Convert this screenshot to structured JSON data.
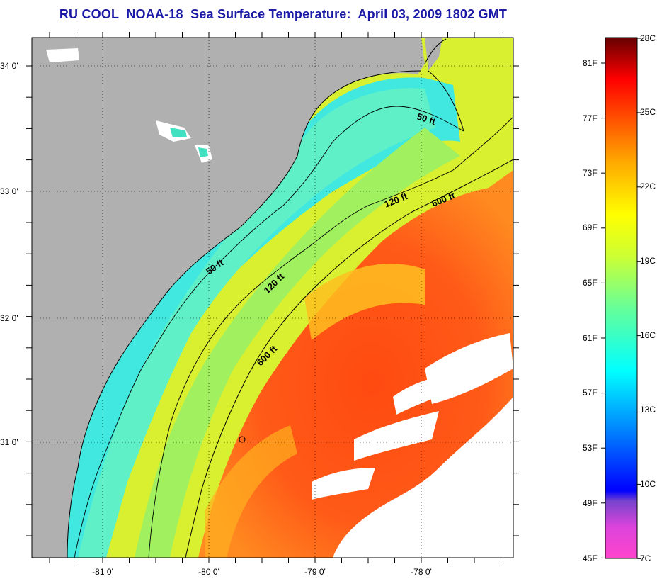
{
  "title": "RU COOL  NOAA-18  Sea Surface Temperature:  April 03, 2009 1802 GMT",
  "map": {
    "lat_labels": [
      "34 0'",
      "33 0'",
      "32 0'",
      "31 0'"
    ],
    "lon_labels": [
      "-81 0'",
      "-80 0'",
      "-79 0'",
      "-78 0'"
    ],
    "contours": [
      "50 ft",
      "120 ft",
      "600 ft",
      "50 ft",
      "120 ft",
      "600 ft"
    ],
    "colors": {
      "land": "#b0b0b0",
      "cloud": "#ffffff",
      "coastline": "#000000"
    }
  },
  "colorbar": {
    "fahrenheit_labels": [
      "81F",
      "77F",
      "73F",
      "69F",
      "65F",
      "61F",
      "57F",
      "53F",
      "49F",
      "45F"
    ],
    "celsius_labels": [
      "28C",
      "25C",
      "22C",
      "19C",
      "16C",
      "13C",
      "10C",
      "7C"
    ],
    "colors": [
      "#ff44cc",
      "#8844dd",
      "#0000ff",
      "#0099ff",
      "#00ffff",
      "#66ff99",
      "#ffff00",
      "#ff9900",
      "#ff2200",
      "#cc0000",
      "#660000"
    ]
  }
}
